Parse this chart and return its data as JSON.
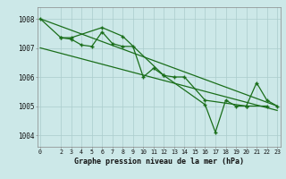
{
  "xlabel": "Graphe pression niveau de la mer (hPa)",
  "line_color": "#1a6e1a",
  "bg_color": "#cce8e8",
  "grid_color": "#aacccc",
  "ylim": [
    1003.6,
    1008.4
  ],
  "yticks": [
    1004,
    1005,
    1006,
    1007,
    1008
  ],
  "xticks": [
    0,
    2,
    3,
    4,
    5,
    6,
    7,
    8,
    9,
    10,
    11,
    12,
    13,
    14,
    15,
    16,
    17,
    18,
    19,
    20,
    21,
    22,
    23
  ],
  "trend1_x": [
    0,
    23
  ],
  "trend1_y": [
    1008.0,
    1005.0
  ],
  "trend2_x": [
    0,
    23
  ],
  "trend2_y": [
    1007.0,
    1004.85
  ],
  "line1_x": [
    0,
    2,
    3,
    4,
    5,
    6,
    7,
    8,
    9,
    10,
    11,
    12,
    13,
    14,
    16,
    20,
    22
  ],
  "line1_y": [
    1008.0,
    1007.35,
    1007.3,
    1007.1,
    1007.05,
    1007.55,
    1007.15,
    1007.05,
    1007.05,
    1006.0,
    1006.3,
    1006.05,
    1006.0,
    1006.0,
    1005.2,
    1005.0,
    1005.0
  ],
  "line2_x": [
    2,
    3,
    6,
    8,
    12,
    16,
    17,
    18,
    19,
    20,
    21,
    22,
    23
  ],
  "line2_y": [
    1007.35,
    1007.35,
    1007.7,
    1007.4,
    1006.05,
    1005.05,
    1004.1,
    1005.2,
    1005.0,
    1005.0,
    1005.8,
    1005.2,
    1005.0
  ]
}
